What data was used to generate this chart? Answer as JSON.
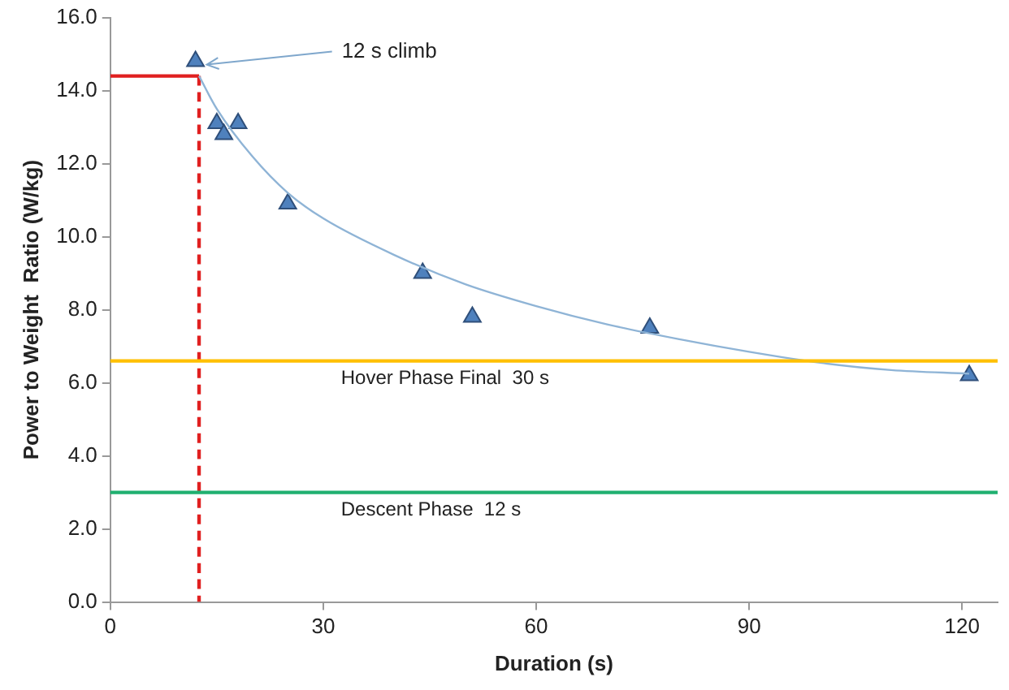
{
  "chart_data": {
    "type": "scatter",
    "xlabel": "Duration (s)",
    "ylabel": "Power to Weight  Ratio (W/kg)",
    "xlim": [
      0,
      125
    ],
    "xticks": [
      0,
      30,
      60,
      90,
      120
    ],
    "ylim": [
      0,
      16
    ],
    "yticks": [
      {
        "value": 0,
        "label": "0.0"
      },
      {
        "value": 2,
        "label": "2.0"
      },
      {
        "value": 4,
        "label": "4.0"
      },
      {
        "value": 6,
        "label": "6.0"
      },
      {
        "value": 8,
        "label": "8.0"
      },
      {
        "value": 10,
        "label": "10.0"
      },
      {
        "value": 12,
        "label": "12.0"
      },
      {
        "value": 14,
        "label": "14.0"
      },
      {
        "value": 16,
        "label": "16.0"
      }
    ],
    "grid": false,
    "legend": false,
    "marker": "triangle",
    "series": [
      {
        "type": "line",
        "color": "#8fb4d6",
        "marker": "none",
        "x": [
          12.5,
          15,
          20,
          25,
          30,
          40,
          50,
          60,
          70,
          80,
          90,
          100,
          110,
          121
        ],
        "values": [
          14.4,
          13.5,
          12.2,
          11.2,
          10.5,
          9.5,
          8.7,
          8.1,
          7.6,
          7.2,
          6.85,
          6.55,
          6.35,
          6.25
        ]
      },
      {
        "type": "line",
        "color": "#e02020",
        "marker": "none",
        "line_style": "solid",
        "x": [
          0,
          12.5
        ],
        "values": [
          14.4,
          14.4
        ]
      },
      {
        "type": "line",
        "color": "#e02020",
        "marker": "none",
        "line_style": "dashed",
        "x": [
          12.5,
          12.5
        ],
        "values": [
          14.4,
          0
        ]
      },
      {
        "type": "scatter",
        "color": "#4f81bd",
        "x": [
          12,
          15,
          16,
          18,
          25,
          44,
          51,
          76,
          121
        ],
        "values": [
          14.8,
          13.1,
          12.8,
          13.1,
          10.9,
          9.0,
          7.8,
          7.5,
          6.2
        ]
      }
    ],
    "ref_lines": [
      {
        "axis": "y",
        "value": 6.6,
        "label": "Hover Phase Final  30 s",
        "color": "#ffc000"
      },
      {
        "axis": "y",
        "value": 3.0,
        "label": "Descent Phase  12 s",
        "color": "#20b070"
      }
    ],
    "annotations": [
      {
        "text": "12 s climb",
        "x": 12,
        "y": 14.8
      }
    ]
  }
}
